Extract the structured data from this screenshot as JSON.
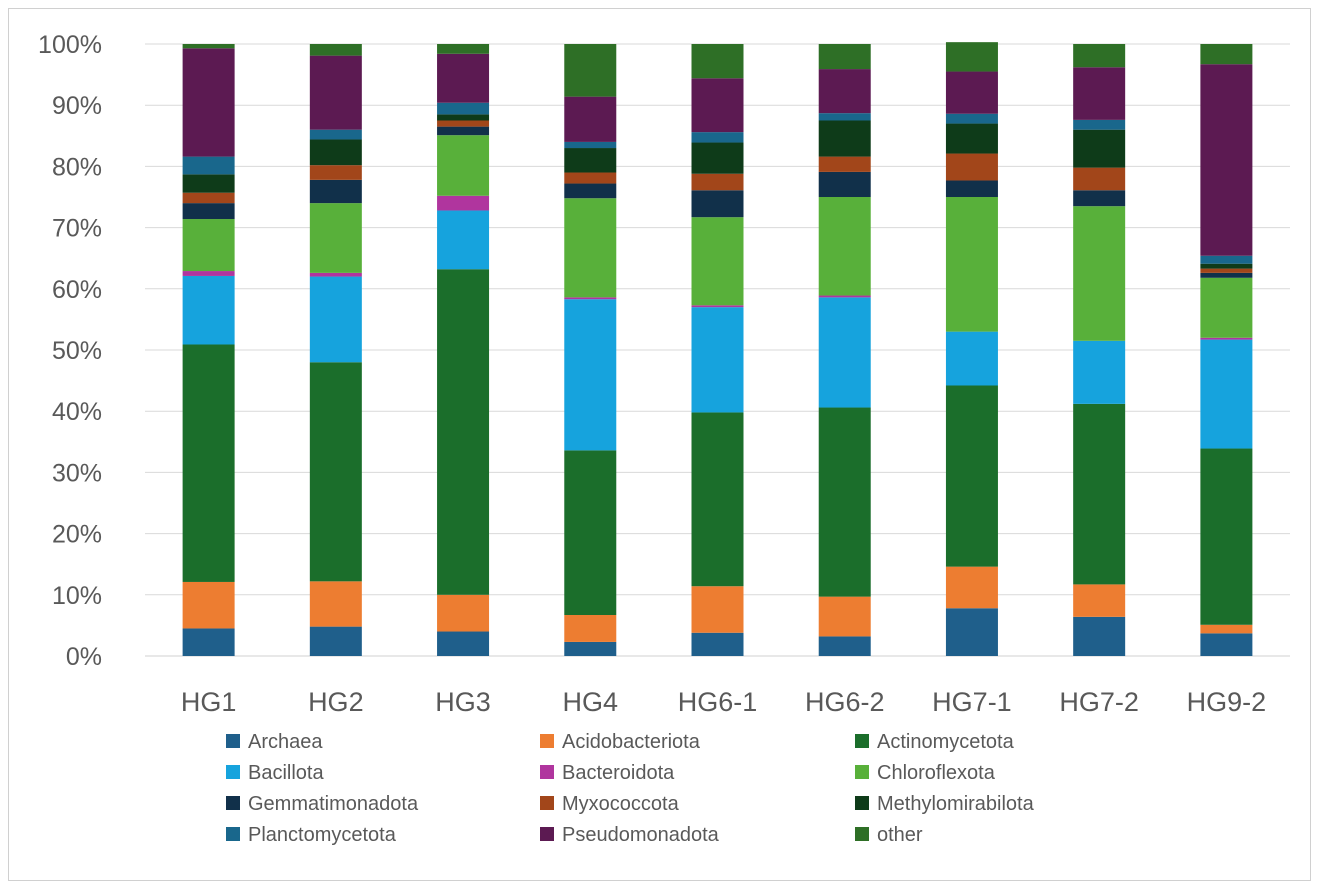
{
  "chart_data": {
    "type": "bar",
    "stacked": true,
    "percent": true,
    "categories": [
      "HG1",
      "HG2",
      "HG3",
      "HG4",
      "HG6-1",
      "HG6-2",
      "HG7-1",
      "HG7-2",
      "HG9-2"
    ],
    "y_ticks": [
      "0%",
      "10%",
      "20%",
      "30%",
      "40%",
      "50%",
      "60%",
      "70%",
      "80%",
      "90%",
      "100%"
    ],
    "ylim": [
      0,
      100
    ],
    "grid": true,
    "legend_position": "bottom",
    "series": [
      {
        "name": "Archaea",
        "color": "#1f5f8b",
        "values": [
          4.5,
          4.8,
          4.0,
          2.3,
          3.8,
          3.2,
          7.8,
          6.4,
          3.7
        ]
      },
      {
        "name": "Acidobacteriota",
        "color": "#ed7d31",
        "values": [
          7.6,
          7.4,
          6.0,
          4.4,
          7.6,
          6.5,
          6.8,
          5.3,
          1.4
        ]
      },
      {
        "name": "Actinomycetota",
        "color": "#1b6e2b",
        "values": [
          38.8,
          35.8,
          53.2,
          26.9,
          28.4,
          30.9,
          29.6,
          29.5,
          28.8
        ]
      },
      {
        "name": "Bacillota",
        "color": "#16a3dd",
        "values": [
          11.2,
          14.0,
          9.6,
          24.7,
          17.2,
          18.0,
          8.8,
          10.3,
          17.8
        ]
      },
      {
        "name": "Bacteroidota",
        "color": "#b0359e",
        "values": [
          0.8,
          0.6,
          2.4,
          0.3,
          0.3,
          0.3,
          0.0,
          0.0,
          0.3
        ]
      },
      {
        "name": "Chloroflexota",
        "color": "#58b03a",
        "values": [
          8.5,
          11.4,
          9.9,
          16.2,
          14.4,
          16.1,
          22.0,
          22.0,
          9.8
        ]
      },
      {
        "name": "Gemmatimonadota",
        "color": "#11304a",
        "values": [
          2.6,
          3.8,
          1.4,
          2.4,
          4.4,
          4.1,
          2.7,
          2.6,
          0.8
        ]
      },
      {
        "name": "Myxococcota",
        "color": "#a2461a",
        "values": [
          1.7,
          2.4,
          1.0,
          1.8,
          2.7,
          2.5,
          4.4,
          3.7,
          0.7
        ]
      },
      {
        "name": "Methylomirabilota",
        "color": "#0e3b19",
        "values": [
          3.0,
          4.2,
          1.0,
          4.0,
          5.1,
          5.9,
          4.9,
          6.2,
          0.8
        ]
      },
      {
        "name": "Planctomycetota",
        "color": "#19678c",
        "values": [
          2.9,
          1.6,
          1.9,
          1.0,
          1.7,
          1.2,
          1.6,
          1.6,
          1.3
        ]
      },
      {
        "name": "Pseudomonadota",
        "color": "#5c1a52",
        "values": [
          17.7,
          12.1,
          8.0,
          7.4,
          8.8,
          7.2,
          6.9,
          8.6,
          31.3
        ]
      },
      {
        "name": "other",
        "color": "#2e6f26",
        "values": [
          0.7,
          1.9,
          1.6,
          8.6,
          5.6,
          4.1,
          4.8,
          3.8,
          3.3
        ]
      }
    ]
  }
}
